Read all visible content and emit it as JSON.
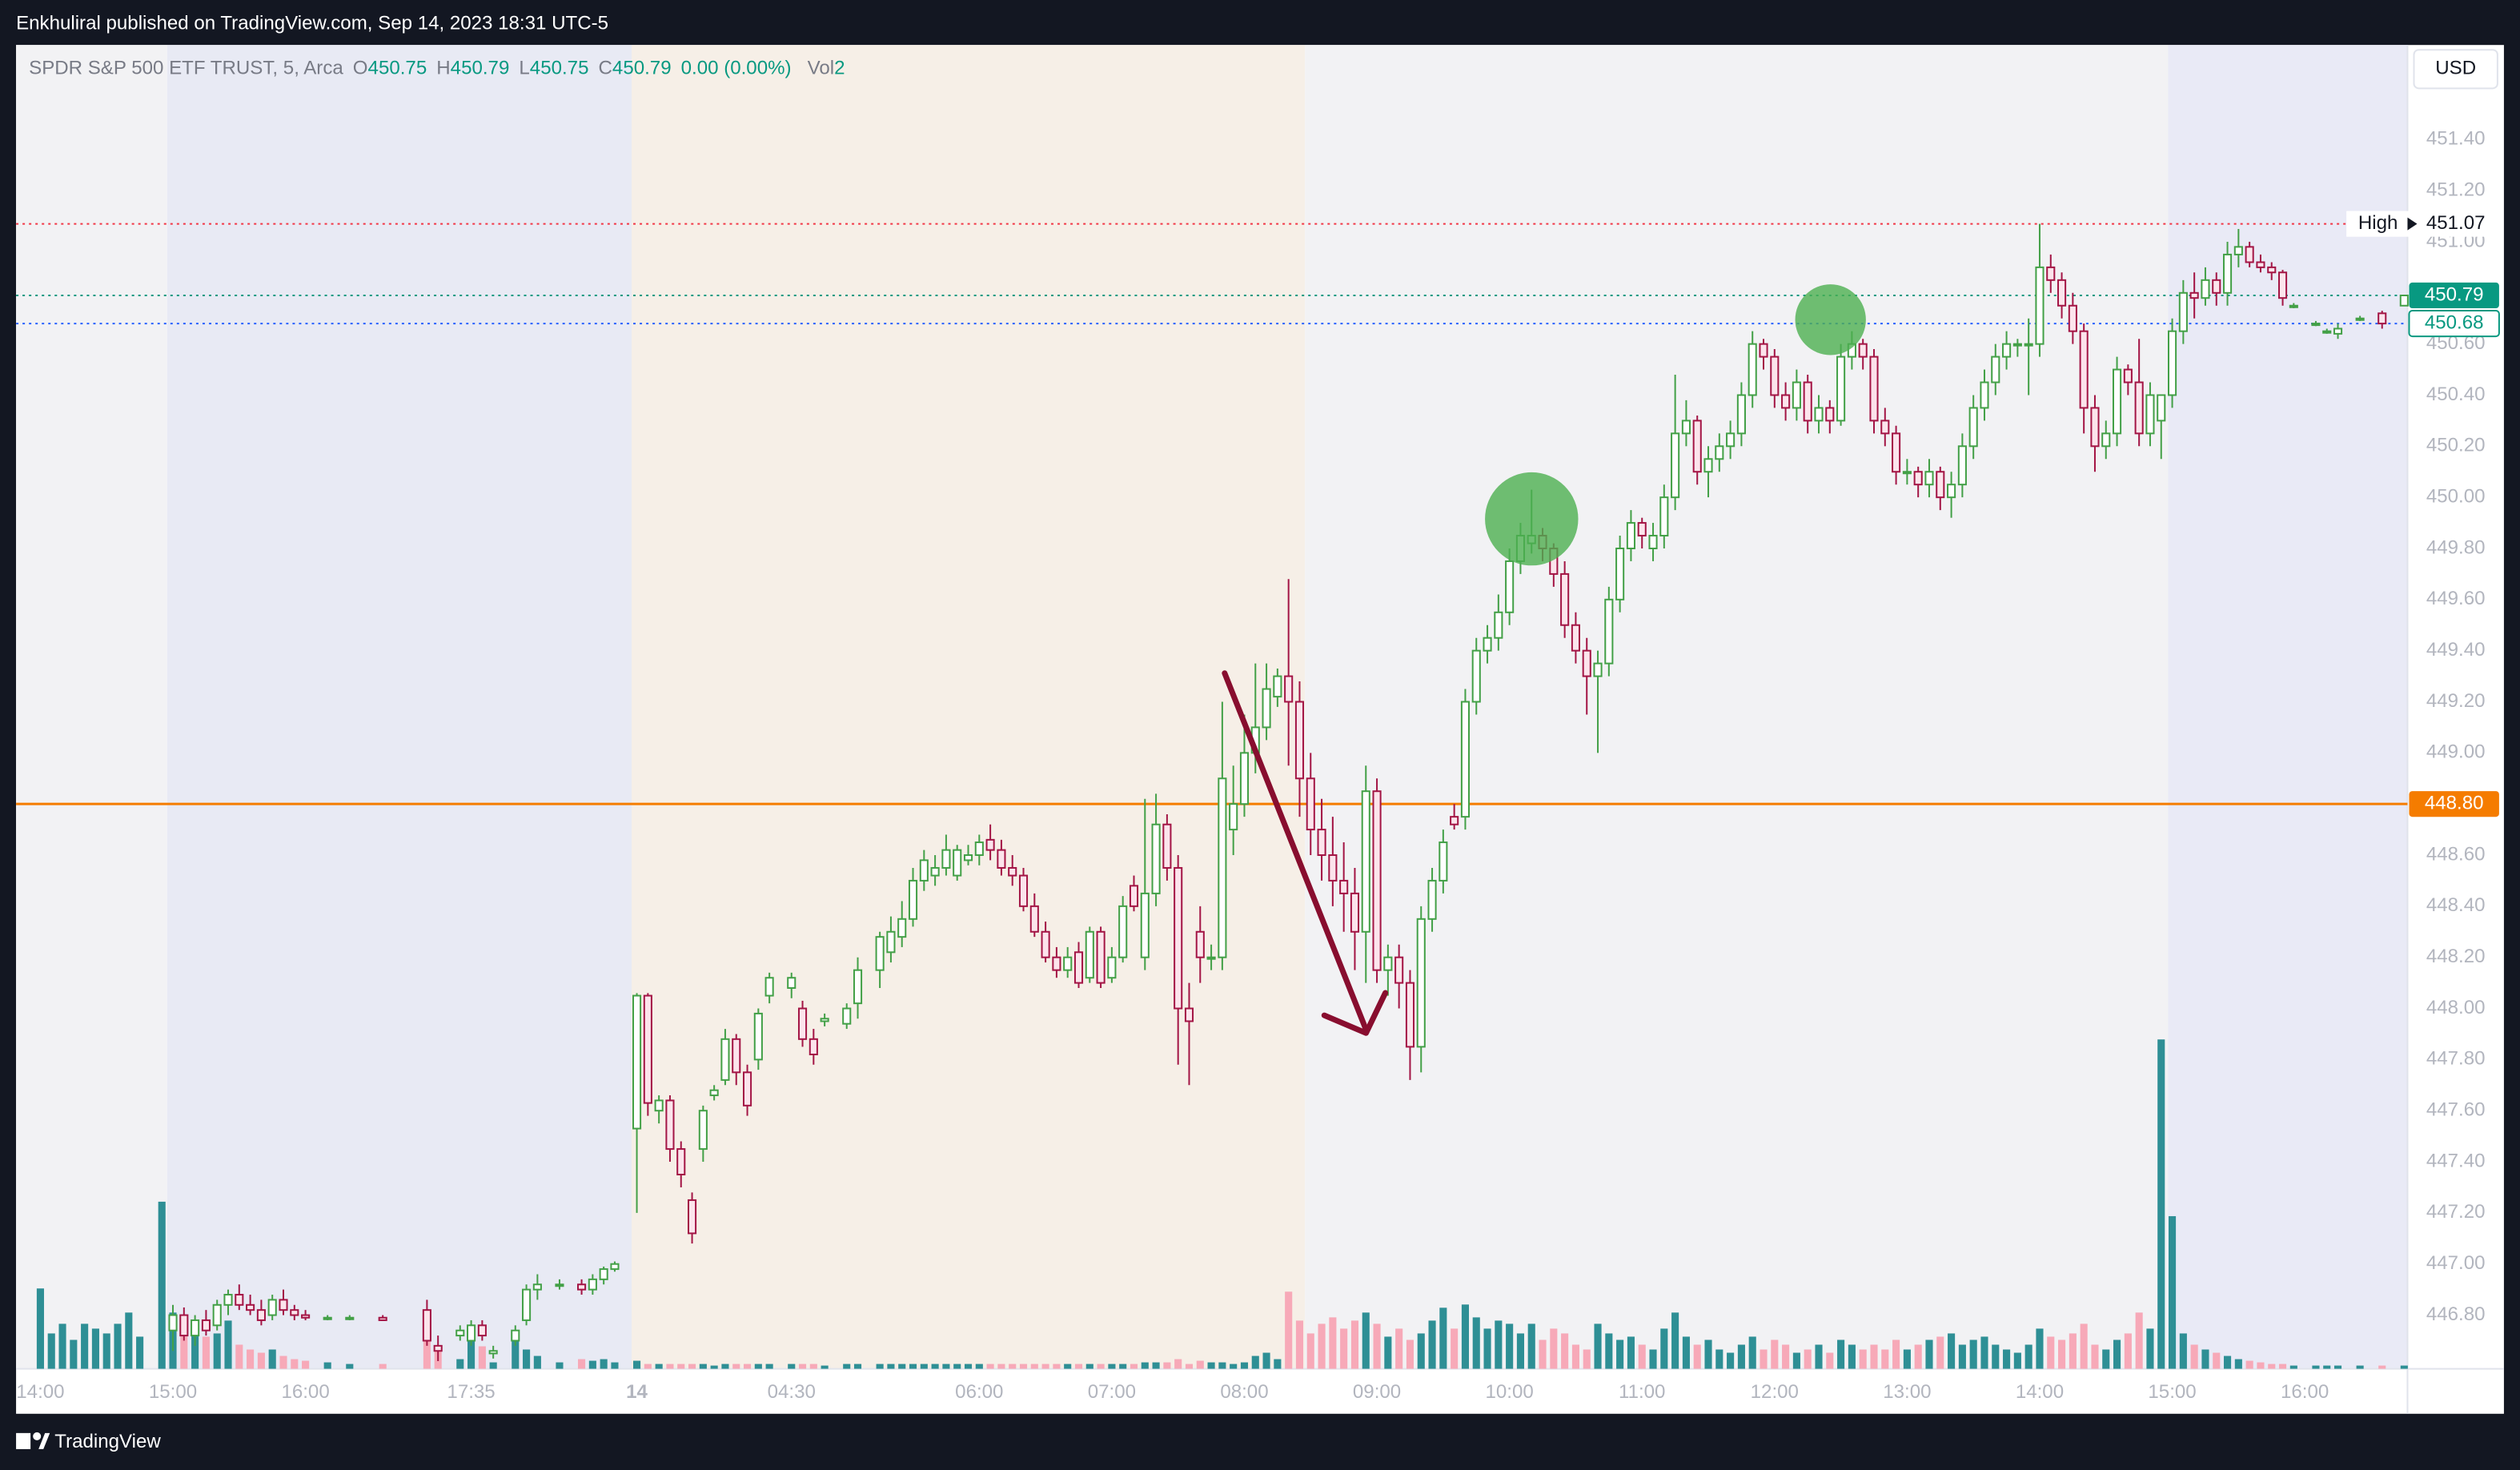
{
  "header": "Enkhuliral published on TradingView.com, Sep 14, 2023 18:31 UTC-5",
  "footer": "TradingView",
  "currency": "USD",
  "legend": {
    "symbol": "SPDR S&P 500 ETF TRUST, 5, Arca",
    "ohlc_labels": [
      "O",
      "H",
      "L",
      "C"
    ],
    "open": 450.75,
    "high": 450.79,
    "low": 450.75,
    "close": 450.79,
    "change": "0.00 (0.00%)",
    "volume_label": "Vol",
    "volume": 2
  },
  "chart_data": {
    "type": "candlestick",
    "up_color": "#43a047",
    "down_color": "#a31545",
    "up_volume_color": "#2e8f95",
    "down_volume_color": "#f7a9b8",
    "xlim": [
      -2.2,
      214.3
    ],
    "ylim": [
      446.59,
      451.77
    ],
    "vlim": [
      0,
      260
    ],
    "grid": false,
    "xticks": [
      {
        "value": 0,
        "label": "14:00"
      },
      {
        "value": 12,
        "label": "15:00"
      },
      {
        "value": 24,
        "label": "16:00"
      },
      {
        "value": 39,
        "label": "17:35"
      },
      {
        "value": 54,
        "label": "14"
      },
      {
        "value": 68,
        "label": "04:30"
      },
      {
        "value": 85,
        "label": "06:00"
      },
      {
        "value": 97,
        "label": "07:00"
      },
      {
        "value": 109,
        "label": "08:00"
      },
      {
        "value": 121,
        "label": "09:00"
      },
      {
        "value": 133,
        "label": "10:00"
      },
      {
        "value": 145,
        "label": "11:00"
      },
      {
        "value": 157,
        "label": "12:00"
      },
      {
        "value": 169,
        "label": "13:00"
      },
      {
        "value": 181,
        "label": "14:00"
      },
      {
        "value": 193,
        "label": "15:00"
      },
      {
        "value": 205,
        "label": "16:00"
      }
    ],
    "yticks": [
      {
        "value": 446.8,
        "label": "446.80"
      },
      {
        "value": 447,
        "label": "447.00"
      },
      {
        "value": 447.2,
        "label": "447.20"
      },
      {
        "value": 447.4,
        "label": "447.40"
      },
      {
        "value": 447.6,
        "label": "447.60"
      },
      {
        "value": 447.8,
        "label": "447.80"
      },
      {
        "value": 448,
        "label": "448.00"
      },
      {
        "value": 448.2,
        "label": "448.20"
      },
      {
        "value": 448.4,
        "label": "448.40"
      },
      {
        "value": 448.6,
        "label": "448.60"
      },
      {
        "value": 448.8,
        "label": "448.80"
      },
      {
        "value": 449,
        "label": "449.00"
      },
      {
        "value": 449.2,
        "label": "449.20"
      },
      {
        "value": 449.4,
        "label": "449.40"
      },
      {
        "value": 449.6,
        "label": "449.60"
      },
      {
        "value": 449.8,
        "label": "449.80"
      },
      {
        "value": 450,
        "label": "450.00"
      },
      {
        "value": 450.2,
        "label": "450.20"
      },
      {
        "value": 450.4,
        "label": "450.40"
      },
      {
        "value": 450.6,
        "label": "450.60"
      },
      {
        "value": 450.8,
        "label": "450.80"
      },
      {
        "value": 451,
        "label": "451.00"
      },
      {
        "value": 451.2,
        "label": "451.20"
      },
      {
        "value": 451.4,
        "label": "451.40"
      }
    ],
    "price_lines": [
      {
        "name": "High",
        "value": 451.07,
        "color": "#f23645",
        "style": "dotted",
        "tag": "plain"
      },
      {
        "value": 450.79,
        "color": "#089981",
        "style": "dotted",
        "tag": "filled"
      },
      {
        "value": 450.68,
        "color": "#2962ff",
        "style": "dotted",
        "tag": "outline",
        "tag_color": "#089981"
      },
      {
        "value": 448.8,
        "value_label": "448.80",
        "color": "#f57c00",
        "style": "solid",
        "tag": "filled"
      }
    ],
    "x": [
      0,
      1,
      2,
      3,
      4,
      5,
      6,
      7,
      8,
      9,
      11,
      12,
      13,
      14,
      15,
      16,
      17,
      18,
      19,
      20,
      21,
      22,
      23,
      24,
      26,
      28,
      31,
      35,
      36,
      38,
      39,
      40,
      41,
      43,
      44,
      45,
      47,
      49,
      50,
      51,
      52,
      54,
      55,
      56,
      57,
      58,
      59,
      60,
      61,
      62,
      63,
      64,
      65,
      66,
      68,
      69,
      70,
      71,
      73,
      74,
      76,
      77,
      78,
      79,
      80,
      81,
      82,
      83,
      84,
      85,
      86,
      87,
      88,
      89,
      90,
      91,
      92,
      93,
      94,
      95,
      96,
      97,
      98,
      99,
      100,
      101,
      102,
      103,
      104,
      105,
      106,
      107,
      108,
      109,
      110,
      111,
      112,
      113,
      114,
      115,
      116,
      117,
      118,
      119,
      120,
      121,
      122,
      123,
      124,
      125,
      126,
      127,
      128,
      129,
      130,
      131,
      132,
      133,
      134,
      135,
      136,
      137,
      138,
      139,
      140,
      141,
      142,
      143,
      144,
      145,
      146,
      147,
      148,
      149,
      150,
      151,
      152,
      153,
      154,
      155,
      156,
      157,
      158,
      159,
      160,
      161,
      162,
      163,
      164,
      165,
      166,
      167,
      168,
      169,
      170,
      171,
      172,
      173,
      174,
      175,
      176,
      177,
      178,
      179,
      180,
      181,
      182,
      183,
      184,
      185,
      186,
      187,
      188,
      189,
      190,
      191,
      192,
      193,
      194,
      195,
      196,
      197,
      198,
      199,
      200,
      201,
      202,
      203,
      204,
      206,
      207,
      208,
      210,
      212,
      214
    ],
    "open": [
      null,
      null,
      null,
      null,
      null,
      null,
      null,
      null,
      null,
      null,
      null,
      446.74,
      446.8,
      446.72,
      446.78,
      446.76,
      446.84,
      446.88,
      446.84,
      446.82,
      446.8,
      446.86,
      446.82,
      446.8,
      446.79,
      446.79,
      446.79,
      446.82,
      446.68,
      446.72,
      446.7,
      446.76,
      446.65,
      446.7,
      446.78,
      446.9,
      446.92,
      446.92,
      446.9,
      446.94,
      446.98,
      447.53,
      448.05,
      447.6,
      447.64,
      447.45,
      447.25,
      447.45,
      447.66,
      447.72,
      447.88,
      447.75,
      447.8,
      448.05,
      448.08,
      448.0,
      447.88,
      447.95,
      447.94,
      448.02,
      448.15,
      448.22,
      448.28,
      448.35,
      448.5,
      448.52,
      448.55,
      448.52,
      448.58,
      448.6,
      448.66,
      448.62,
      448.55,
      448.52,
      448.4,
      448.3,
      448.2,
      448.15,
      448.22,
      448.12,
      448.3,
      448.12,
      448.2,
      448.48,
      448.2,
      448.45,
      448.72,
      448.55,
      448.0,
      448.3,
      448.2,
      448.2,
      448.7,
      448.8,
      449.0,
      449.1,
      449.22,
      449.3,
      449.2,
      448.9,
      448.7,
      448.6,
      448.5,
      448.45,
      448.3,
      448.85,
      448.15,
      448.2,
      448.1,
      447.85,
      448.35,
      448.5,
      448.75,
      448.75,
      449.2,
      449.4,
      449.45,
      449.55,
      449.75,
      449.82,
      449.85,
      449.8,
      449.7,
      449.5,
      449.4,
      449.3,
      449.35,
      449.6,
      449.8,
      449.9,
      449.8,
      449.85,
      450.0,
      450.25,
      450.3,
      450.1,
      450.15,
      450.2,
      450.25,
      450.4,
      450.6,
      450.55,
      450.4,
      450.35,
      450.45,
      450.3,
      450.35,
      450.3,
      450.55,
      450.6,
      450.55,
      450.3,
      450.25,
      450.1,
      450.1,
      450.05,
      450.1,
      450.0,
      450.05,
      450.2,
      450.35,
      450.45,
      450.55,
      450.6,
      450.6,
      450.6,
      450.9,
      450.85,
      450.75,
      450.65,
      450.35,
      450.2,
      450.25,
      450.5,
      450.45,
      450.25,
      450.3,
      450.4,
      450.65,
      450.8,
      450.78,
      450.85,
      450.8,
      450.95,
      450.98,
      450.92,
      450.9,
      450.88,
      450.75,
      450.68,
      450.65,
      450.64,
      450.7,
      450.72,
      450.75
    ],
    "high": [
      null,
      null,
      null,
      null,
      null,
      null,
      null,
      null,
      null,
      null,
      null,
      446.84,
      446.83,
      446.8,
      446.82,
      446.86,
      446.9,
      446.92,
      446.88,
      446.86,
      446.88,
      446.9,
      446.84,
      446.82,
      446.8,
      446.8,
      446.8,
      446.86,
      446.72,
      446.76,
      446.78,
      446.78,
      446.68,
      446.76,
      446.92,
      446.96,
      446.94,
      446.94,
      446.96,
      446.99,
      447.01,
      448.06,
      448.06,
      447.66,
      447.66,
      447.48,
      447.28,
      447.62,
      447.7,
      447.92,
      447.9,
      447.78,
      448.0,
      448.14,
      448.14,
      448.03,
      447.92,
      447.98,
      448.02,
      448.2,
      448.3,
      448.36,
      448.42,
      448.55,
      448.62,
      448.6,
      448.68,
      448.64,
      448.64,
      448.68,
      448.72,
      448.66,
      448.6,
      448.55,
      448.45,
      448.34,
      448.24,
      448.24,
      448.26,
      448.32,
      448.32,
      448.24,
      448.44,
      448.52,
      448.82,
      448.84,
      448.76,
      448.6,
      448.1,
      448.4,
      448.25,
      449.2,
      448.95,
      449.15,
      449.35,
      449.35,
      449.33,
      449.68,
      449.28,
      449.0,
      448.82,
      448.75,
      448.65,
      448.55,
      448.95,
      448.9,
      448.25,
      448.25,
      448.15,
      448.4,
      448.55,
      448.7,
      448.8,
      449.25,
      449.45,
      449.5,
      449.62,
      449.8,
      449.9,
      450.03,
      449.88,
      449.82,
      449.75,
      449.55,
      449.45,
      449.4,
      449.65,
      449.85,
      449.95,
      449.92,
      449.9,
      450.05,
      450.48,
      450.38,
      450.32,
      450.2,
      450.25,
      450.3,
      450.45,
      450.65,
      450.62,
      450.58,
      450.45,
      450.5,
      450.48,
      450.4,
      450.38,
      450.6,
      450.65,
      450.62,
      450.58,
      450.35,
      450.28,
      450.15,
      450.12,
      450.15,
      450.12,
      450.1,
      450.25,
      450.4,
      450.5,
      450.6,
      450.65,
      450.62,
      450.7,
      451.07,
      450.95,
      450.88,
      450.8,
      450.68,
      450.4,
      450.3,
      450.55,
      450.52,
      450.62,
      450.45,
      450.4,
      450.7,
      450.85,
      450.88,
      450.9,
      450.88,
      451.0,
      451.05,
      451.0,
      450.95,
      450.92,
      450.89,
      450.76,
      450.69,
      450.66,
      450.68,
      450.71,
      450.73,
      450.79
    ],
    "low": [
      null,
      null,
      null,
      null,
      null,
      null,
      null,
      null,
      null,
      null,
      null,
      446.66,
      446.7,
      446.68,
      446.72,
      446.74,
      446.8,
      446.82,
      446.8,
      446.76,
      446.78,
      446.8,
      446.78,
      446.78,
      446.78,
      446.78,
      446.78,
      446.68,
      446.62,
      446.7,
      446.68,
      446.7,
      446.63,
      446.68,
      446.76,
      446.86,
      446.9,
      446.88,
      446.88,
      446.92,
      446.97,
      447.2,
      447.58,
      447.55,
      447.4,
      447.3,
      447.08,
      447.4,
      447.64,
      447.7,
      447.7,
      447.58,
      447.76,
      448.02,
      448.04,
      447.85,
      447.78,
      447.93,
      447.92,
      447.96,
      448.08,
      448.18,
      448.24,
      448.32,
      448.46,
      448.48,
      448.52,
      448.5,
      448.56,
      448.56,
      448.58,
      448.52,
      448.48,
      448.38,
      448.28,
      448.18,
      448.12,
      448.12,
      448.08,
      448.1,
      448.08,
      448.1,
      448.18,
      448.38,
      448.15,
      448.4,
      448.5,
      447.78,
      447.7,
      448.1,
      448.15,
      448.15,
      448.6,
      448.75,
      448.92,
      449.05,
      449.18,
      448.95,
      448.75,
      448.6,
      448.5,
      448.4,
      448.3,
      448.15,
      448.1,
      448.1,
      448.05,
      448.0,
      447.72,
      447.75,
      448.3,
      448.45,
      448.7,
      448.7,
      449.15,
      449.35,
      449.4,
      449.5,
      449.7,
      449.78,
      449.75,
      449.65,
      449.45,
      449.35,
      449.15,
      449.0,
      449.3,
      449.55,
      449.75,
      449.8,
      449.75,
      449.8,
      449.95,
      450.2,
      450.05,
      450.0,
      450.1,
      450.15,
      450.2,
      450.35,
      450.5,
      450.35,
      450.3,
      450.3,
      450.25,
      450.25,
      450.25,
      450.28,
      450.5,
      450.5,
      450.25,
      450.2,
      450.05,
      450.05,
      450.0,
      450.0,
      449.95,
      449.92,
      450.0,
      450.15,
      450.3,
      450.4,
      450.5,
      450.55,
      450.4,
      450.55,
      450.8,
      450.7,
      450.6,
      450.25,
      450.1,
      450.15,
      450.2,
      450.4,
      450.2,
      450.2,
      450.15,
      450.35,
      450.6,
      450.7,
      450.75,
      450.75,
      450.75,
      450.9,
      450.9,
      450.88,
      450.85,
      450.75,
      450.74,
      450.67,
      450.64,
      450.62,
      450.69,
      450.66,
      450.75
    ],
    "close": [
      null,
      null,
      null,
      null,
      null,
      null,
      null,
      null,
      null,
      null,
      null,
      446.8,
      446.72,
      446.78,
      446.74,
      446.84,
      446.88,
      446.84,
      446.82,
      446.78,
      446.86,
      446.82,
      446.8,
      446.79,
      446.79,
      446.79,
      446.78,
      446.7,
      446.66,
      446.74,
      446.76,
      446.72,
      446.66,
      446.74,
      446.9,
      446.92,
      446.92,
      446.9,
      446.94,
      446.98,
      447.0,
      448.05,
      447.63,
      447.64,
      447.45,
      447.35,
      447.12,
      447.6,
      447.68,
      447.88,
      447.75,
      447.62,
      447.98,
      448.12,
      448.12,
      447.88,
      447.82,
      447.96,
      448.0,
      448.15,
      448.28,
      448.3,
      448.35,
      448.5,
      448.58,
      448.55,
      448.62,
      448.62,
      448.6,
      448.65,
      448.62,
      448.55,
      448.52,
      448.4,
      448.3,
      448.2,
      448.15,
      448.2,
      448.1,
      448.3,
      448.1,
      448.2,
      448.4,
      448.4,
      448.45,
      448.72,
      448.55,
      448.0,
      447.95,
      448.2,
      448.2,
      448.9,
      448.8,
      449.0,
      449.1,
      449.25,
      449.3,
      449.2,
      448.9,
      448.7,
      448.6,
      448.5,
      448.45,
      448.3,
      448.85,
      448.15,
      448.2,
      448.1,
      447.85,
      448.35,
      448.5,
      448.65,
      448.72,
      449.2,
      449.4,
      449.45,
      449.55,
      449.75,
      449.85,
      449.85,
      449.8,
      449.7,
      449.5,
      449.4,
      449.3,
      449.35,
      449.6,
      449.8,
      449.9,
      449.85,
      449.85,
      450.0,
      450.25,
      450.3,
      450.1,
      450.15,
      450.2,
      450.25,
      450.4,
      450.6,
      450.55,
      450.4,
      450.35,
      450.45,
      450.3,
      450.35,
      450.3,
      450.55,
      450.6,
      450.55,
      450.3,
      450.25,
      450.1,
      450.1,
      450.05,
      450.1,
      450.0,
      450.05,
      450.2,
      450.35,
      450.45,
      450.55,
      450.6,
      450.6,
      450.6,
      450.9,
      450.85,
      450.75,
      450.65,
      450.35,
      450.2,
      450.25,
      450.5,
      450.45,
      450.25,
      450.4,
      450.4,
      450.65,
      450.8,
      450.78,
      450.85,
      450.8,
      450.95,
      450.98,
      450.92,
      450.9,
      450.88,
      450.78,
      450.75,
      450.68,
      450.65,
      450.66,
      450.7,
      450.68,
      450.79
    ],
    "volume": [
      50,
      22,
      28,
      18,
      28,
      25,
      22,
      28,
      35,
      20,
      104,
      35,
      25,
      28,
      20,
      22,
      30,
      15,
      12,
      10,
      12,
      8,
      6,
      5,
      4,
      3,
      3,
      28,
      12,
      6,
      22,
      14,
      4,
      18,
      12,
      8,
      4,
      6,
      5,
      6,
      4,
      5,
      3,
      3,
      3,
      3,
      3,
      3,
      2,
      3,
      3,
      3,
      3,
      3,
      3,
      3,
      3,
      2,
      3,
      3,
      3,
      3,
      3,
      3,
      3,
      3,
      3,
      3,
      3,
      3,
      3,
      3,
      3,
      3,
      3,
      3,
      3,
      3,
      3,
      3,
      3,
      3,
      3,
      3,
      4,
      4,
      4,
      6,
      3,
      5,
      4,
      4,
      3,
      4,
      8,
      10,
      6,
      48,
      30,
      22,
      28,
      32,
      25,
      30,
      35,
      28,
      20,
      25,
      18,
      22,
      30,
      38,
      25,
      40,
      32,
      25,
      30,
      28,
      22,
      28,
      18,
      25,
      22,
      15,
      12,
      28,
      22,
      18,
      20,
      15,
      12,
      25,
      35,
      20,
      15,
      18,
      12,
      10,
      15,
      20,
      12,
      18,
      15,
      10,
      12,
      15,
      10,
      18,
      15,
      12,
      15,
      12,
      18,
      12,
      15,
      18,
      20,
      22,
      15,
      18,
      20,
      15,
      12,
      10,
      15,
      25,
      20,
      18,
      22,
      28,
      15,
      12,
      18,
      22,
      35,
      25,
      205,
      95,
      22,
      15,
      12,
      10,
      8,
      6,
      5,
      4,
      3,
      3,
      2,
      2,
      2,
      2,
      2,
      2,
      2
    ]
  }
}
